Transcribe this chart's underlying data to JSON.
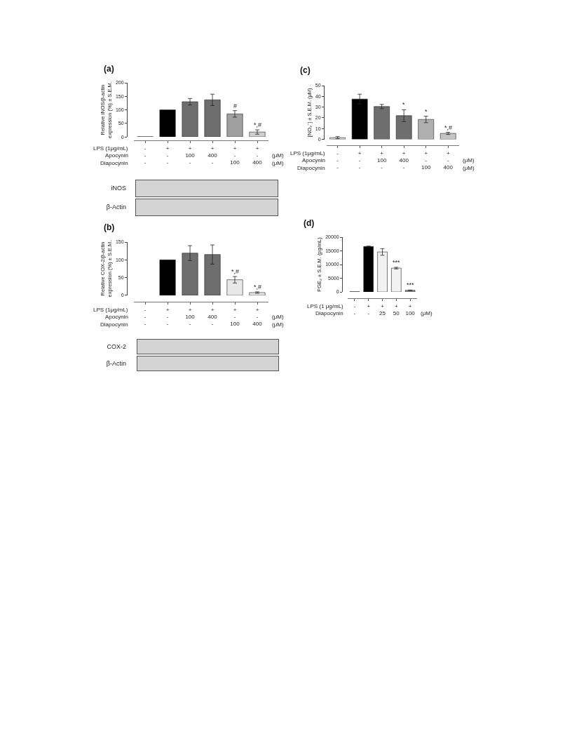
{
  "chart_data": [
    {
      "type": "bar",
      "title": "(a)",
      "ylabel": "Relative iNOS/β-actin expression (%) ± S.E.M.",
      "categories": [
        "-\n-\n-",
        "+\n-\n-",
        "+\n100\n-",
        "+\n400\n-",
        "+\n-\n100",
        "+\n-\n400"
      ],
      "values": [
        1,
        100,
        130,
        137,
        85,
        18
      ],
      "errors": [
        null,
        null,
        12,
        21,
        12,
        8
      ],
      "value_labels": [
        null,
        null,
        null,
        null,
        "#",
        "*,#"
      ],
      "colors": [
        "#d0d0d0",
        "#000000",
        "#6e6e6e",
        "#6e6e6e",
        "#a0a0a0",
        "#cfcfcf"
      ],
      "ylim": [
        0,
        200
      ],
      "yticks": [
        0,
        50,
        100,
        150,
        200
      ],
      "annotations": [
        "LPS (1μg/mL)",
        "Apocynin",
        "Diapocynin",
        "(μM)",
        "(μM)"
      ]
    },
    {
      "type": "other",
      "annotations": [
        "iNOS",
        "β-Actin"
      ]
    },
    {
      "type": "bar",
      "title": "(b)",
      "ylabel": "Relative COX-2/β-actin expression (%) ± S.E.M.",
      "categories": [
        "-\n-\n-",
        "+\n-\n-",
        "+\n100\n-",
        "+\n400\n-",
        "+\n-\n100",
        "+\n-\n400"
      ],
      "values": [
        null,
        100,
        119,
        115,
        44,
        8
      ],
      "errors": [
        null,
        null,
        21,
        27,
        9,
        2
      ],
      "value_labels": [
        null,
        null,
        null,
        null,
        "*,#",
        "*,#"
      ],
      "colors": [
        null,
        "#000000",
        "#6e6e6e",
        "#6e6e6e",
        "#e8e8e8",
        "#e8e8e8"
      ],
      "ylim": [
        0,
        150
      ],
      "yticks": [
        0,
        50,
        100,
        150
      ],
      "annotations": [
        "LPS (1μg/mL)",
        "Apocynin",
        "Diapocynin",
        "(μM)",
        "(μM)"
      ]
    },
    {
      "type": "other",
      "annotations": [
        "COX-2",
        "β-Actin"
      ]
    },
    {
      "type": "bar",
      "title": "(c)",
      "ylabel": "[NO₂⁻] ± S.E.M. (μM)",
      "categories": [
        "-\n-\n-",
        "+\n-\n-",
        "+\n100\n-",
        "+\n400\n-",
        "+\n-\n100",
        "+\n-\n400"
      ],
      "values": [
        1.5,
        37.5,
        30.5,
        22,
        18.5,
        5.5
      ],
      "errors": [
        1,
        4.5,
        2,
        5.5,
        3,
        1
      ],
      "value_labels": [
        null,
        null,
        null,
        "*",
        "*",
        "*,#"
      ],
      "colors": [
        "#d4d4d4",
        "#000000",
        "#6e6e6e",
        "#6e6e6e",
        "#b0b0b0",
        "#c4c4c4"
      ],
      "ylim": [
        0,
        50
      ],
      "yticks": [
        0,
        10,
        20,
        30,
        40,
        50
      ],
      "annotations": [
        "LPS (1μg/mL)",
        "Apocynin",
        "Diapocynin",
        "(μM)",
        "(μM)"
      ]
    },
    {
      "type": "bar",
      "title": "(d)",
      "ylabel": "PGE₂ ± S.E.M. (pg/mL)",
      "categories": [
        "-\n-",
        "+\n-",
        "+\n25",
        "+\n50",
        "+\n100"
      ],
      "values": [
        100,
        16600,
        14600,
        8700,
        600
      ],
      "errors": [
        null,
        150,
        1200,
        300,
        100
      ],
      "value_labels": [
        null,
        null,
        null,
        "***",
        "***"
      ],
      "colors": [
        "#808080",
        "#000000",
        "#f2f2f2",
        "#f2f2f2",
        "#9a9a9a"
      ],
      "ylim": [
        0,
        20000
      ],
      "yticks": [
        0,
        5000,
        10000,
        15000,
        20000
      ],
      "annotations": [
        "LPS (1 μg/mL)",
        "Diapocynin",
        "(μM)"
      ]
    }
  ]
}
